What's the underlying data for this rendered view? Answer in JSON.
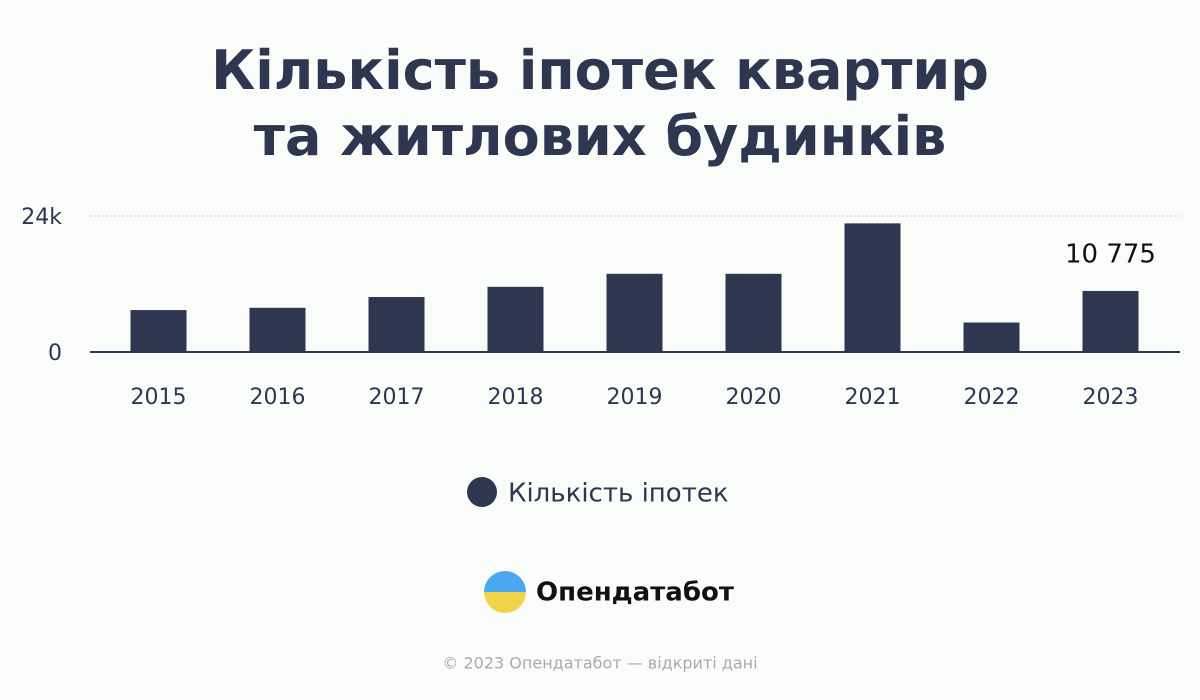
{
  "chart_data": {
    "type": "bar",
    "title": "Кількість іпотек квартир та житлових будинків",
    "categories": [
      "2015",
      "2016",
      "2017",
      "2018",
      "2019",
      "2020",
      "2021",
      "2022",
      "2023"
    ],
    "series": [
      {
        "name": "Кількість іпотек",
        "color": "#2e3650",
        "values": [
          7400,
          7800,
          9700,
          11500,
          13800,
          13800,
          22700,
          5200,
          10775
        ],
        "value_labels": [
          null,
          null,
          null,
          null,
          null,
          null,
          null,
          null,
          "10 775"
        ]
      }
    ],
    "ylim": [
      0,
      24000
    ],
    "yticks": [
      0,
      {
        "value": 24000,
        "label": "24k"
      }
    ],
    "grid": true,
    "brand": "Опендатабот",
    "footer": "© 2023 Опендатабот — відкриті дані"
  }
}
